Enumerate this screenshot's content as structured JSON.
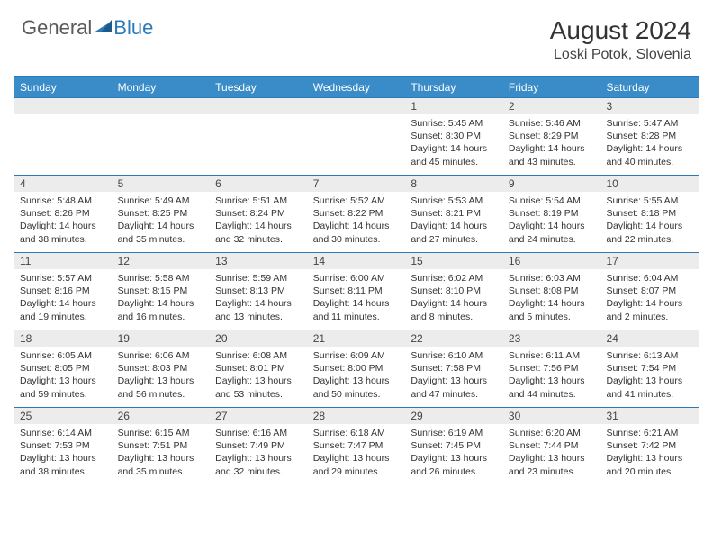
{
  "logo": {
    "text1": "General",
    "text2": "Blue"
  },
  "title": "August 2024",
  "location": "Loski Potok, Slovenia",
  "colors": {
    "header_bg": "#3a8cc9",
    "header_text": "#ffffff",
    "border": "#2a7ab8",
    "daynum_bg": "#ececec",
    "body_text": "#333333"
  },
  "day_headers": [
    "Sunday",
    "Monday",
    "Tuesday",
    "Wednesday",
    "Thursday",
    "Friday",
    "Saturday"
  ],
  "weeks": [
    [
      {
        "num": "",
        "sun": "",
        "set": "",
        "day": ""
      },
      {
        "num": "",
        "sun": "",
        "set": "",
        "day": ""
      },
      {
        "num": "",
        "sun": "",
        "set": "",
        "day": ""
      },
      {
        "num": "",
        "sun": "",
        "set": "",
        "day": ""
      },
      {
        "num": "1",
        "sun": "Sunrise: 5:45 AM",
        "set": "Sunset: 8:30 PM",
        "day": "Daylight: 14 hours and 45 minutes."
      },
      {
        "num": "2",
        "sun": "Sunrise: 5:46 AM",
        "set": "Sunset: 8:29 PM",
        "day": "Daylight: 14 hours and 43 minutes."
      },
      {
        "num": "3",
        "sun": "Sunrise: 5:47 AM",
        "set": "Sunset: 8:28 PM",
        "day": "Daylight: 14 hours and 40 minutes."
      }
    ],
    [
      {
        "num": "4",
        "sun": "Sunrise: 5:48 AM",
        "set": "Sunset: 8:26 PM",
        "day": "Daylight: 14 hours and 38 minutes."
      },
      {
        "num": "5",
        "sun": "Sunrise: 5:49 AM",
        "set": "Sunset: 8:25 PM",
        "day": "Daylight: 14 hours and 35 minutes."
      },
      {
        "num": "6",
        "sun": "Sunrise: 5:51 AM",
        "set": "Sunset: 8:24 PM",
        "day": "Daylight: 14 hours and 32 minutes."
      },
      {
        "num": "7",
        "sun": "Sunrise: 5:52 AM",
        "set": "Sunset: 8:22 PM",
        "day": "Daylight: 14 hours and 30 minutes."
      },
      {
        "num": "8",
        "sun": "Sunrise: 5:53 AM",
        "set": "Sunset: 8:21 PM",
        "day": "Daylight: 14 hours and 27 minutes."
      },
      {
        "num": "9",
        "sun": "Sunrise: 5:54 AM",
        "set": "Sunset: 8:19 PM",
        "day": "Daylight: 14 hours and 24 minutes."
      },
      {
        "num": "10",
        "sun": "Sunrise: 5:55 AM",
        "set": "Sunset: 8:18 PM",
        "day": "Daylight: 14 hours and 22 minutes."
      }
    ],
    [
      {
        "num": "11",
        "sun": "Sunrise: 5:57 AM",
        "set": "Sunset: 8:16 PM",
        "day": "Daylight: 14 hours and 19 minutes."
      },
      {
        "num": "12",
        "sun": "Sunrise: 5:58 AM",
        "set": "Sunset: 8:15 PM",
        "day": "Daylight: 14 hours and 16 minutes."
      },
      {
        "num": "13",
        "sun": "Sunrise: 5:59 AM",
        "set": "Sunset: 8:13 PM",
        "day": "Daylight: 14 hours and 13 minutes."
      },
      {
        "num": "14",
        "sun": "Sunrise: 6:00 AM",
        "set": "Sunset: 8:11 PM",
        "day": "Daylight: 14 hours and 11 minutes."
      },
      {
        "num": "15",
        "sun": "Sunrise: 6:02 AM",
        "set": "Sunset: 8:10 PM",
        "day": "Daylight: 14 hours and 8 minutes."
      },
      {
        "num": "16",
        "sun": "Sunrise: 6:03 AM",
        "set": "Sunset: 8:08 PM",
        "day": "Daylight: 14 hours and 5 minutes."
      },
      {
        "num": "17",
        "sun": "Sunrise: 6:04 AM",
        "set": "Sunset: 8:07 PM",
        "day": "Daylight: 14 hours and 2 minutes."
      }
    ],
    [
      {
        "num": "18",
        "sun": "Sunrise: 6:05 AM",
        "set": "Sunset: 8:05 PM",
        "day": "Daylight: 13 hours and 59 minutes."
      },
      {
        "num": "19",
        "sun": "Sunrise: 6:06 AM",
        "set": "Sunset: 8:03 PM",
        "day": "Daylight: 13 hours and 56 minutes."
      },
      {
        "num": "20",
        "sun": "Sunrise: 6:08 AM",
        "set": "Sunset: 8:01 PM",
        "day": "Daylight: 13 hours and 53 minutes."
      },
      {
        "num": "21",
        "sun": "Sunrise: 6:09 AM",
        "set": "Sunset: 8:00 PM",
        "day": "Daylight: 13 hours and 50 minutes."
      },
      {
        "num": "22",
        "sun": "Sunrise: 6:10 AM",
        "set": "Sunset: 7:58 PM",
        "day": "Daylight: 13 hours and 47 minutes."
      },
      {
        "num": "23",
        "sun": "Sunrise: 6:11 AM",
        "set": "Sunset: 7:56 PM",
        "day": "Daylight: 13 hours and 44 minutes."
      },
      {
        "num": "24",
        "sun": "Sunrise: 6:13 AM",
        "set": "Sunset: 7:54 PM",
        "day": "Daylight: 13 hours and 41 minutes."
      }
    ],
    [
      {
        "num": "25",
        "sun": "Sunrise: 6:14 AM",
        "set": "Sunset: 7:53 PM",
        "day": "Daylight: 13 hours and 38 minutes."
      },
      {
        "num": "26",
        "sun": "Sunrise: 6:15 AM",
        "set": "Sunset: 7:51 PM",
        "day": "Daylight: 13 hours and 35 minutes."
      },
      {
        "num": "27",
        "sun": "Sunrise: 6:16 AM",
        "set": "Sunset: 7:49 PM",
        "day": "Daylight: 13 hours and 32 minutes."
      },
      {
        "num": "28",
        "sun": "Sunrise: 6:18 AM",
        "set": "Sunset: 7:47 PM",
        "day": "Daylight: 13 hours and 29 minutes."
      },
      {
        "num": "29",
        "sun": "Sunrise: 6:19 AM",
        "set": "Sunset: 7:45 PM",
        "day": "Daylight: 13 hours and 26 minutes."
      },
      {
        "num": "30",
        "sun": "Sunrise: 6:20 AM",
        "set": "Sunset: 7:44 PM",
        "day": "Daylight: 13 hours and 23 minutes."
      },
      {
        "num": "31",
        "sun": "Sunrise: 6:21 AM",
        "set": "Sunset: 7:42 PM",
        "day": "Daylight: 13 hours and 20 minutes."
      }
    ]
  ]
}
